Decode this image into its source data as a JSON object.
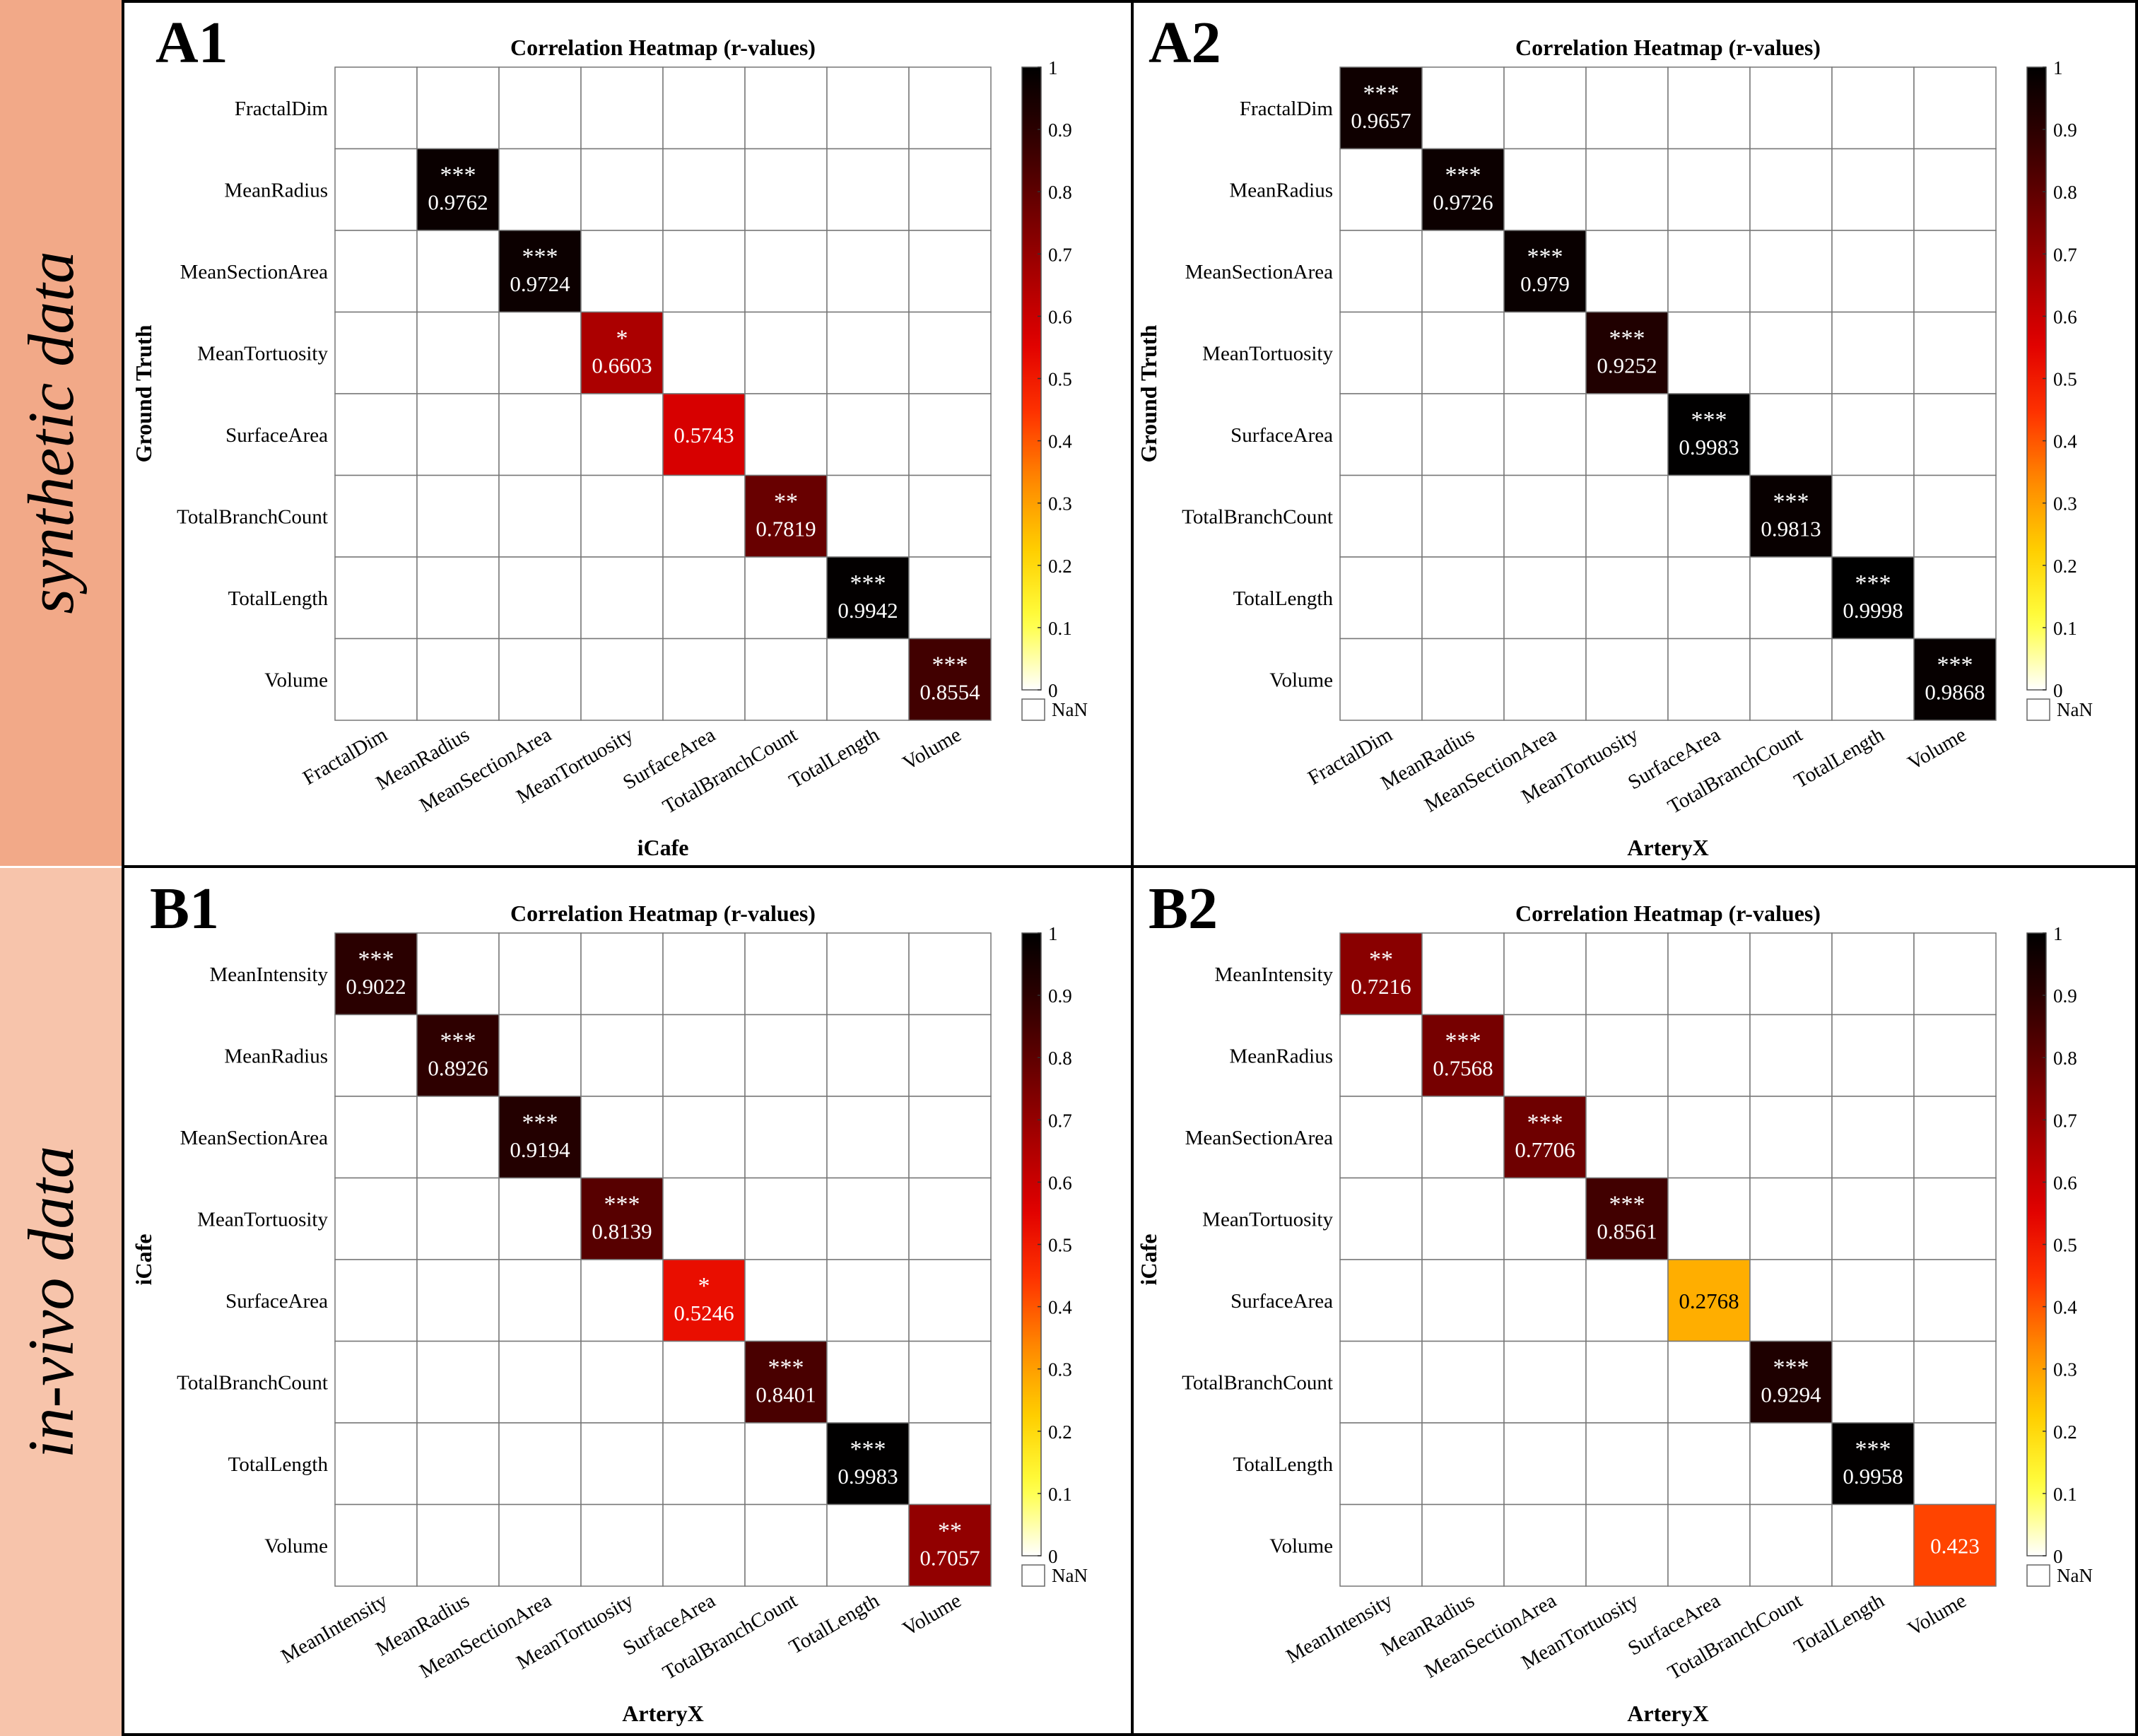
{
  "row_labels": [
    "synthetic data",
    "in-vivo data"
  ],
  "colors": {
    "row_band_synthetic": "#f2a988",
    "row_band_invivo": "#f7c4ab",
    "panel_border": "#000000",
    "grid_line": "#777777"
  },
  "colorbar": {
    "ticks": [
      "0",
      "0.1",
      "0.2",
      "0.3",
      "0.4",
      "0.5",
      "0.6",
      "0.7",
      "0.8",
      "0.9",
      "1"
    ],
    "nan_label": "NaN",
    "stops": [
      "#ffffff",
      "#ffff40",
      "#ffd000",
      "#ff8a00",
      "#ff3300",
      "#e00000",
      "#a80000",
      "#6a0000",
      "#300000",
      "#000000"
    ]
  },
  "chart_data": [
    {
      "type": "heatmap",
      "panel_label": "A1",
      "title": "Correlation Heatmap (r-values)",
      "xlabel": "iCafe",
      "ylabel": "Ground Truth",
      "row_labels": [
        "FractalDim",
        "MeanRadius",
        "MeanSectionArea",
        "MeanTortuosity",
        "SurfaceArea",
        "TotalBranchCount",
        "TotalLength",
        "Volume"
      ],
      "col_labels": [
        "FractalDim",
        "MeanRadius",
        "MeanSectionArea",
        "MeanTortuosity",
        "SurfaceArea",
        "TotalBranchCount",
        "TotalLength",
        "Volume"
      ],
      "diagonal": [
        null,
        0.9762,
        0.9724,
        0.6603,
        0.5743,
        0.7819,
        0.9942,
        0.8554
      ],
      "diagonal_text": [
        "",
        "0.9762",
        "0.9724",
        "0.6603",
        "0.5743",
        "0.7819",
        "0.9942",
        "0.8554"
      ],
      "significance": [
        "",
        "***",
        "***",
        "*",
        "",
        "**",
        "***",
        "***"
      ],
      "clim": [
        0,
        1
      ]
    },
    {
      "type": "heatmap",
      "panel_label": "A2",
      "title": "Correlation Heatmap (r-values)",
      "xlabel": "ArteryX",
      "ylabel": "Ground Truth",
      "row_labels": [
        "FractalDim",
        "MeanRadius",
        "MeanSectionArea",
        "MeanTortuosity",
        "SurfaceArea",
        "TotalBranchCount",
        "TotalLength",
        "Volume"
      ],
      "col_labels": [
        "FractalDim",
        "MeanRadius",
        "MeanSectionArea",
        "MeanTortuosity",
        "SurfaceArea",
        "TotalBranchCount",
        "TotalLength",
        "Volume"
      ],
      "diagonal": [
        0.9657,
        0.9726,
        0.979,
        0.9252,
        0.9983,
        0.9813,
        0.9998,
        0.9868
      ],
      "diagonal_text": [
        "0.9657",
        "0.9726",
        "0.979",
        "0.9252",
        "0.9983",
        "0.9813",
        "0.9998",
        "0.9868"
      ],
      "significance": [
        "***",
        "***",
        "***",
        "***",
        "***",
        "***",
        "***",
        "***"
      ],
      "clim": [
        0,
        1
      ]
    },
    {
      "type": "heatmap",
      "panel_label": "B1",
      "title": "Correlation Heatmap (r-values)",
      "xlabel": "ArteryX",
      "ylabel": "iCafe",
      "row_labels": [
        "MeanIntensity",
        "MeanRadius",
        "MeanSectionArea",
        "MeanTortuosity",
        "SurfaceArea",
        "TotalBranchCount",
        "TotalLength",
        "Volume"
      ],
      "col_labels": [
        "MeanIntensity",
        "MeanRadius",
        "MeanSectionArea",
        "MeanTortuosity",
        "SurfaceArea",
        "TotalBranchCount",
        "TotalLength",
        "Volume"
      ],
      "diagonal": [
        0.9022,
        0.8926,
        0.9194,
        0.8139,
        0.5246,
        0.8401,
        0.9983,
        0.7057
      ],
      "diagonal_text": [
        "0.9022",
        "0.8926",
        "0.9194",
        "0.8139",
        "0.5246",
        "0.8401",
        "0.9983",
        "0.7057"
      ],
      "significance": [
        "***",
        "***",
        "***",
        "***",
        "*",
        "***",
        "***",
        "**"
      ],
      "clim": [
        0,
        1
      ]
    },
    {
      "type": "heatmap",
      "panel_label": "B2",
      "title": "Correlation Heatmap (r-values)",
      "xlabel": "ArteryX",
      "ylabel": "iCafe",
      "row_labels": [
        "MeanIntensity",
        "MeanRadius",
        "MeanSectionArea",
        "MeanTortuosity",
        "SurfaceArea",
        "TotalBranchCount",
        "TotalLength",
        "Volume"
      ],
      "col_labels": [
        "MeanIntensity",
        "MeanRadius",
        "MeanSectionArea",
        "MeanTortuosity",
        "SurfaceArea",
        "TotalBranchCount",
        "TotalLength",
        "Volume"
      ],
      "diagonal": [
        0.7216,
        0.7568,
        0.7706,
        0.8561,
        0.2768,
        0.9294,
        0.9958,
        0.423
      ],
      "diagonal_text": [
        "0.7216",
        "0.7568",
        "0.7706",
        "0.8561",
        "0.2768",
        "0.9294",
        "0.9958",
        "0.423"
      ],
      "significance": [
        "**",
        "***",
        "***",
        "***",
        "",
        "***",
        "***",
        ""
      ],
      "clim": [
        0,
        1
      ]
    }
  ]
}
